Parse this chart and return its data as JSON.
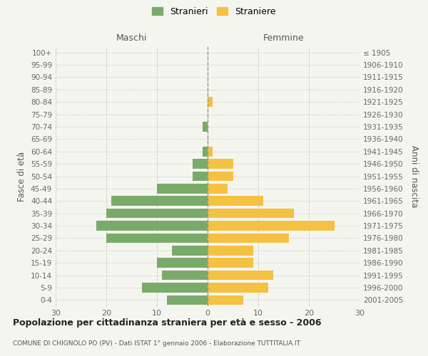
{
  "age_groups": [
    "0-4",
    "5-9",
    "10-14",
    "15-19",
    "20-24",
    "25-29",
    "30-34",
    "35-39",
    "40-44",
    "45-49",
    "50-54",
    "55-59",
    "60-64",
    "65-69",
    "70-74",
    "75-79",
    "80-84",
    "85-89",
    "90-94",
    "95-99",
    "100+"
  ],
  "birth_years": [
    "2001-2005",
    "1996-2000",
    "1991-1995",
    "1986-1990",
    "1981-1985",
    "1976-1980",
    "1971-1975",
    "1966-1970",
    "1961-1965",
    "1956-1960",
    "1951-1955",
    "1946-1950",
    "1941-1945",
    "1936-1940",
    "1931-1935",
    "1926-1930",
    "1921-1925",
    "1916-1920",
    "1911-1915",
    "1906-1910",
    "≤ 1905"
  ],
  "males": [
    8,
    13,
    9,
    10,
    7,
    20,
    22,
    20,
    19,
    10,
    3,
    3,
    1,
    0,
    1,
    0,
    0,
    0,
    0,
    0,
    0
  ],
  "females": [
    7,
    12,
    13,
    9,
    9,
    16,
    25,
    17,
    11,
    4,
    5,
    5,
    1,
    0,
    0,
    0,
    1,
    0,
    0,
    0,
    0
  ],
  "male_color": "#7aaa6a",
  "female_color": "#f5c142",
  "title": "Popolazione per cittadinanza straniera per età e sesso - 2006",
  "subtitle": "COMUNE DI CHIGNOLO PO (PV) - Dati ISTAT 1° gennaio 2006 - Elaborazione TUTTITALIA.IT",
  "xlabel_left": "Maschi",
  "xlabel_right": "Femmine",
  "ylabel_left": "Fasce di età",
  "ylabel_right": "Anni di nascita",
  "legend_stranieri": "Stranieri",
  "legend_straniere": "Straniere",
  "xlim": 30,
  "background_color": "#f5f5f0",
  "grid_color": "#cccccc"
}
